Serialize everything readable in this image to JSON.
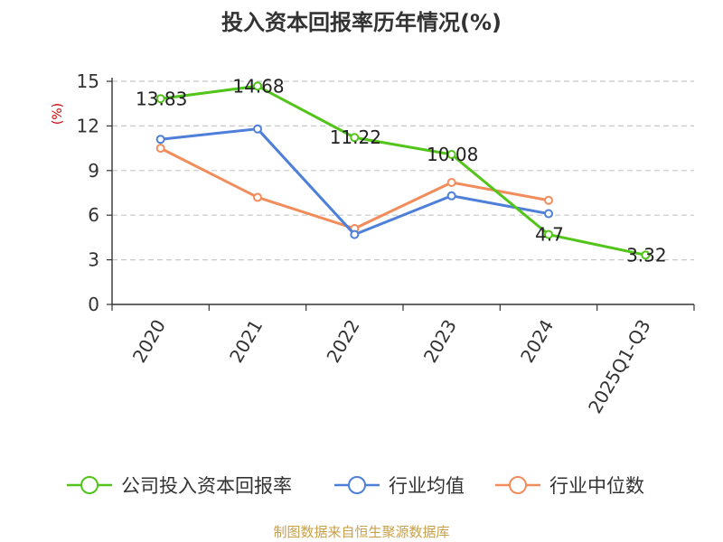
{
  "chart_data": {
    "type": "line",
    "title": "投入资本回报率历年情况(%)",
    "ylabel": "(%)",
    "xlabel": "",
    "categories": [
      "2020",
      "2021",
      "2022",
      "2023",
      "2024",
      "2025Q1-Q3"
    ],
    "yticks": [
      0,
      3,
      6,
      9,
      12,
      15
    ],
    "ylim": [
      0,
      15
    ],
    "grid": true,
    "legend": "bottom",
    "series": [
      {
        "name": "公司投入资本回报率",
        "color": "#52c41a",
        "values": [
          13.83,
          14.68,
          11.22,
          10.08,
          4.7,
          3.32
        ],
        "labels": [
          "13.83",
          "14.68",
          "11.22",
          "10.08",
          "4.7",
          "3.32"
        ]
      },
      {
        "name": "行业均值",
        "color": "#4e7fd9",
        "values": [
          11.1,
          11.8,
          4.7,
          7.3,
          6.1,
          null
        ]
      },
      {
        "name": "行业中位数",
        "color": "#f28c5a",
        "values": [
          10.5,
          7.2,
          5.1,
          8.2,
          7.0,
          null
        ]
      }
    ],
    "source": "制图数据来自恒生聚源数据库"
  }
}
